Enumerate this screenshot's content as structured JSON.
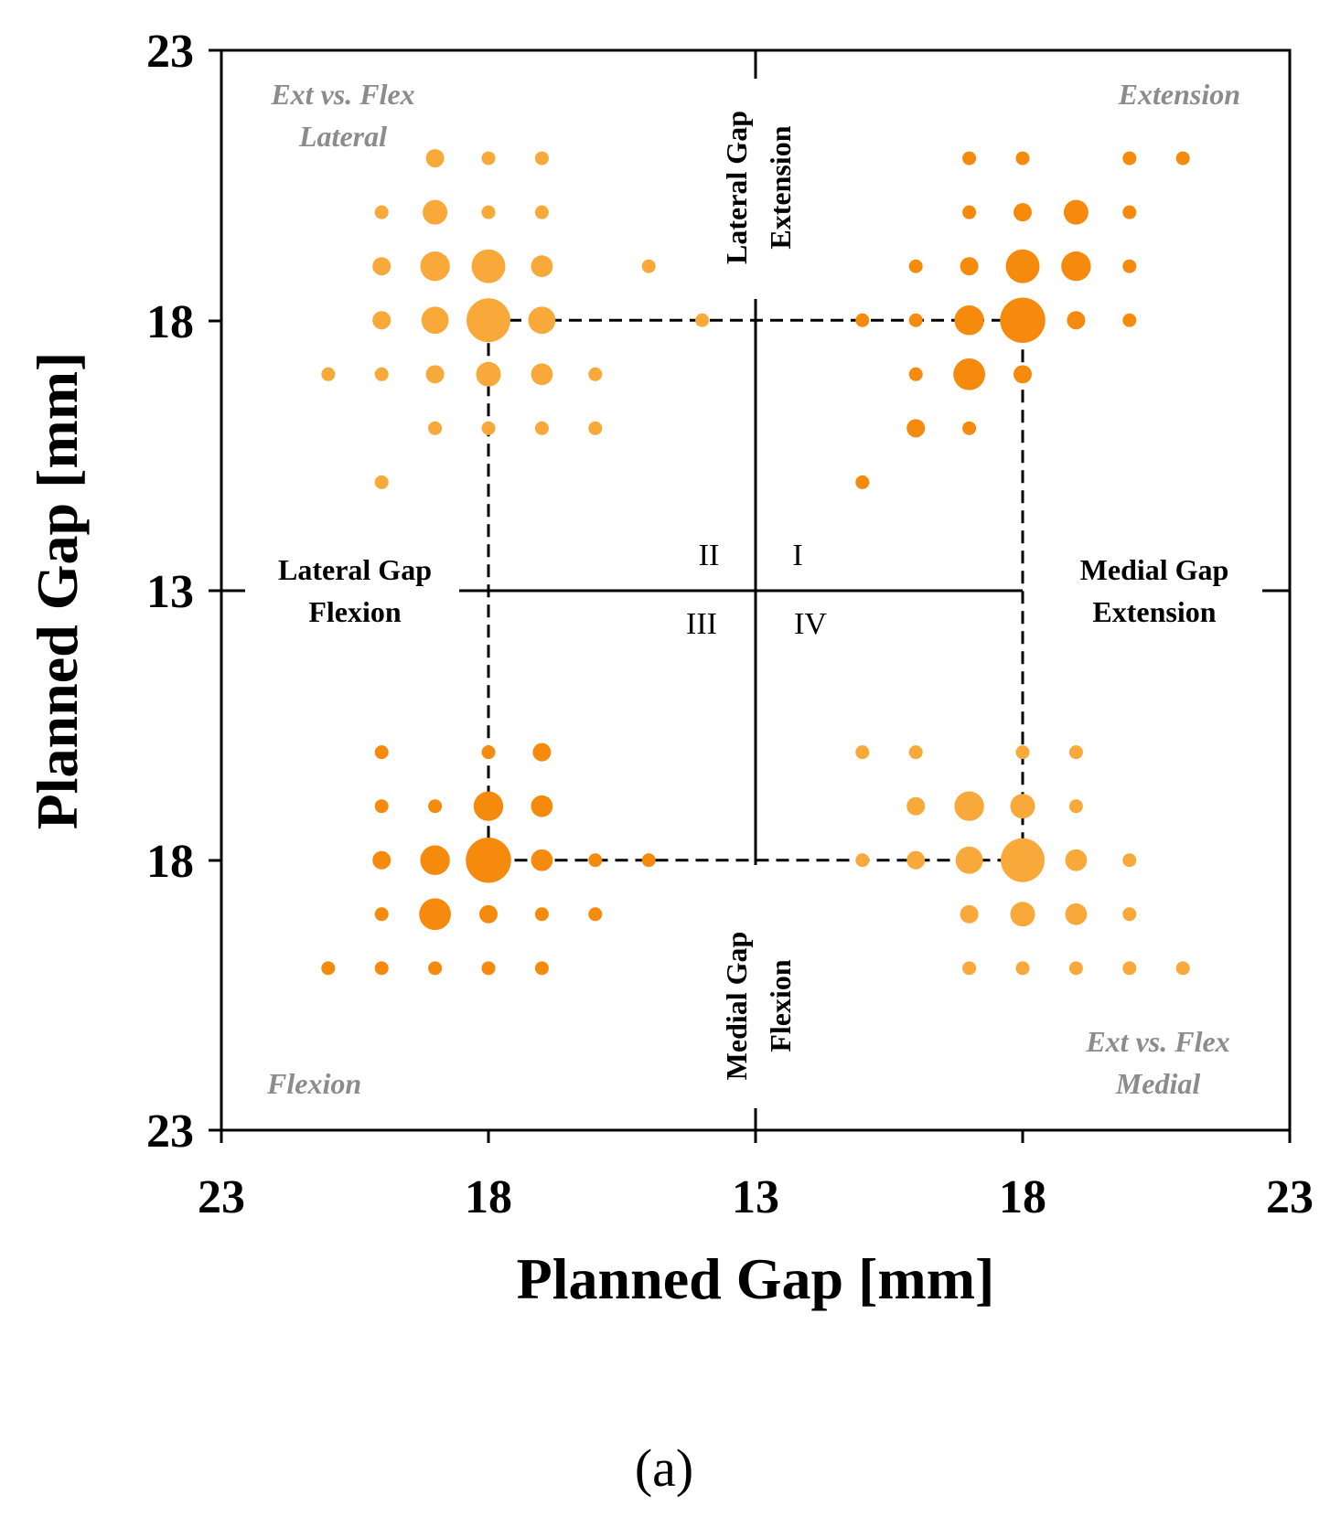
{
  "chart_data": {
    "type": "scatter",
    "subtype": "bubble-quadrant",
    "xlabel": "Planned Gap [mm]",
    "ylabel": "Planned Gap [mm]",
    "x_ticks": [
      "23",
      "18",
      "13",
      "18",
      "23"
    ],
    "y_ticks": [
      "23",
      "18",
      "13",
      "18",
      "23"
    ],
    "xlim": [
      -10,
      10
    ],
    "ylim": [
      -10,
      10
    ],
    "center_value": 13,
    "reference_box": [
      -5,
      5
    ],
    "colors": {
      "light": "#f8a93a",
      "dark": "#f58a0d",
      "gray": "#8c8c8c"
    },
    "axis_labels": {
      "top": [
        "Lateral Gap",
        "Extension"
      ],
      "bottom": [
        "Medial Gap",
        "Flexion"
      ],
      "left": [
        "Lateral Gap",
        "Flexion"
      ],
      "right": [
        "Medial Gap",
        "Extension"
      ]
    },
    "corner_labels": {
      "top_left": [
        "Ext vs. Flex",
        "Lateral"
      ],
      "top_right": [
        "Extension"
      ],
      "bottom_left": [
        "Flexion"
      ],
      "bottom_right": [
        "Ext vs. Flex",
        "Medial"
      ]
    },
    "quadrants": [
      "I",
      "II",
      "III",
      "IV"
    ],
    "series": [
      {
        "name": "Ext vs. Flex Lateral",
        "color": "light",
        "points": [
          {
            "x": -6,
            "y": 8,
            "n": 2
          },
          {
            "x": -5,
            "y": 8,
            "n": 1
          },
          {
            "x": -4,
            "y": 8,
            "n": 1
          },
          {
            "x": -7,
            "y": 7,
            "n": 1
          },
          {
            "x": -6,
            "y": 7,
            "n": 4
          },
          {
            "x": -5,
            "y": 7,
            "n": 1
          },
          {
            "x": -4,
            "y": 7,
            "n": 1
          },
          {
            "x": -7,
            "y": 6,
            "n": 2
          },
          {
            "x": -6,
            "y": 6,
            "n": 6
          },
          {
            "x": -5,
            "y": 6,
            "n": 8
          },
          {
            "x": -4,
            "y": 6,
            "n": 3
          },
          {
            "x": -2,
            "y": 6,
            "n": 1
          },
          {
            "x": -7,
            "y": 5,
            "n": 2
          },
          {
            "x": -6,
            "y": 5,
            "n": 5
          },
          {
            "x": -5,
            "y": 5,
            "n": 14
          },
          {
            "x": -4,
            "y": 5,
            "n": 5
          },
          {
            "x": -1,
            "y": 5,
            "n": 1
          },
          {
            "x": -8,
            "y": 4,
            "n": 1
          },
          {
            "x": -7,
            "y": 4,
            "n": 1
          },
          {
            "x": -6,
            "y": 4,
            "n": 2
          },
          {
            "x": -5,
            "y": 4,
            "n": 4
          },
          {
            "x": -4,
            "y": 4,
            "n": 3
          },
          {
            "x": -3,
            "y": 4,
            "n": 1
          },
          {
            "x": -6,
            "y": 3,
            "n": 1
          },
          {
            "x": -5,
            "y": 3,
            "n": 1
          },
          {
            "x": -4,
            "y": 3,
            "n": 1
          },
          {
            "x": -3,
            "y": 3,
            "n": 1
          },
          {
            "x": -7,
            "y": 2,
            "n": 1
          }
        ]
      },
      {
        "name": "Extension",
        "color": "dark",
        "points": [
          {
            "x": 4,
            "y": 8,
            "n": 1
          },
          {
            "x": 5,
            "y": 8,
            "n": 1
          },
          {
            "x": 7,
            "y": 8,
            "n": 1
          },
          {
            "x": 8,
            "y": 8,
            "n": 1
          },
          {
            "x": 4,
            "y": 7,
            "n": 1
          },
          {
            "x": 5,
            "y": 7,
            "n": 2
          },
          {
            "x": 6,
            "y": 7,
            "n": 4
          },
          {
            "x": 7,
            "y": 7,
            "n": 1
          },
          {
            "x": 3,
            "y": 6,
            "n": 1
          },
          {
            "x": 4,
            "y": 6,
            "n": 2
          },
          {
            "x": 5,
            "y": 6,
            "n": 8
          },
          {
            "x": 6,
            "y": 6,
            "n": 6
          },
          {
            "x": 7,
            "y": 6,
            "n": 1
          },
          {
            "x": 2,
            "y": 5,
            "n": 1
          },
          {
            "x": 3,
            "y": 5,
            "n": 1
          },
          {
            "x": 4,
            "y": 5,
            "n": 6
          },
          {
            "x": 5,
            "y": 5,
            "n": 15
          },
          {
            "x": 6,
            "y": 5,
            "n": 2
          },
          {
            "x": 7,
            "y": 5,
            "n": 1
          },
          {
            "x": 3,
            "y": 4,
            "n": 1
          },
          {
            "x": 4,
            "y": 4,
            "n": 7
          },
          {
            "x": 5,
            "y": 4,
            "n": 2
          },
          {
            "x": 3,
            "y": 3,
            "n": 2
          },
          {
            "x": 4,
            "y": 3,
            "n": 1
          },
          {
            "x": 2,
            "y": 2,
            "n": 1
          }
        ]
      },
      {
        "name": "Flexion",
        "color": "dark",
        "points": [
          {
            "x": -7,
            "y": -3,
            "n": 1
          },
          {
            "x": -5,
            "y": -3,
            "n": 1
          },
          {
            "x": -4,
            "y": -3,
            "n": 2
          },
          {
            "x": -7,
            "y": -4,
            "n": 1
          },
          {
            "x": -6,
            "y": -4,
            "n": 1
          },
          {
            "x": -5,
            "y": -4,
            "n": 6
          },
          {
            "x": -4,
            "y": -4,
            "n": 3
          },
          {
            "x": -7,
            "y": -5,
            "n": 2
          },
          {
            "x": -6,
            "y": -5,
            "n": 6
          },
          {
            "x": -5,
            "y": -5,
            "n": 15
          },
          {
            "x": -4,
            "y": -5,
            "n": 3
          },
          {
            "x": -3,
            "y": -5,
            "n": 1
          },
          {
            "x": -2,
            "y": -5,
            "n": 1
          },
          {
            "x": -7,
            "y": -6,
            "n": 1
          },
          {
            "x": -6,
            "y": -6,
            "n": 7
          },
          {
            "x": -5,
            "y": -6,
            "n": 2
          },
          {
            "x": -4,
            "y": -6,
            "n": 1
          },
          {
            "x": -3,
            "y": -6,
            "n": 1
          },
          {
            "x": -8,
            "y": -7,
            "n": 1
          },
          {
            "x": -7,
            "y": -7,
            "n": 1
          },
          {
            "x": -6,
            "y": -7,
            "n": 1
          },
          {
            "x": -5,
            "y": -7,
            "n": 1
          },
          {
            "x": -4,
            "y": -7,
            "n": 1
          }
        ]
      },
      {
        "name": "Ext vs. Flex Medial",
        "color": "light",
        "points": [
          {
            "x": 2,
            "y": -3,
            "n": 1
          },
          {
            "x": 3,
            "y": -3,
            "n": 1
          },
          {
            "x": 5,
            "y": -3,
            "n": 1
          },
          {
            "x": 6,
            "y": -3,
            "n": 1
          },
          {
            "x": 3,
            "y": -4,
            "n": 2
          },
          {
            "x": 4,
            "y": -4,
            "n": 6
          },
          {
            "x": 5,
            "y": -4,
            "n": 4
          },
          {
            "x": 6,
            "y": -4,
            "n": 1
          },
          {
            "x": 2,
            "y": -5,
            "n": 1
          },
          {
            "x": 3,
            "y": -5,
            "n": 2
          },
          {
            "x": 4,
            "y": -5,
            "n": 5
          },
          {
            "x": 5,
            "y": -5,
            "n": 14
          },
          {
            "x": 6,
            "y": -5,
            "n": 3
          },
          {
            "x": 7,
            "y": -5,
            "n": 1
          },
          {
            "x": 4,
            "y": -6,
            "n": 2
          },
          {
            "x": 5,
            "y": -6,
            "n": 4
          },
          {
            "x": 6,
            "y": -6,
            "n": 3
          },
          {
            "x": 7,
            "y": -6,
            "n": 1
          },
          {
            "x": 4,
            "y": -7,
            "n": 1
          },
          {
            "x": 5,
            "y": -7,
            "n": 1
          },
          {
            "x": 6,
            "y": -7,
            "n": 1
          },
          {
            "x": 7,
            "y": -7,
            "n": 1
          },
          {
            "x": 8,
            "y": -7,
            "n": 1
          }
        ]
      }
    ]
  },
  "caption": "(a)"
}
